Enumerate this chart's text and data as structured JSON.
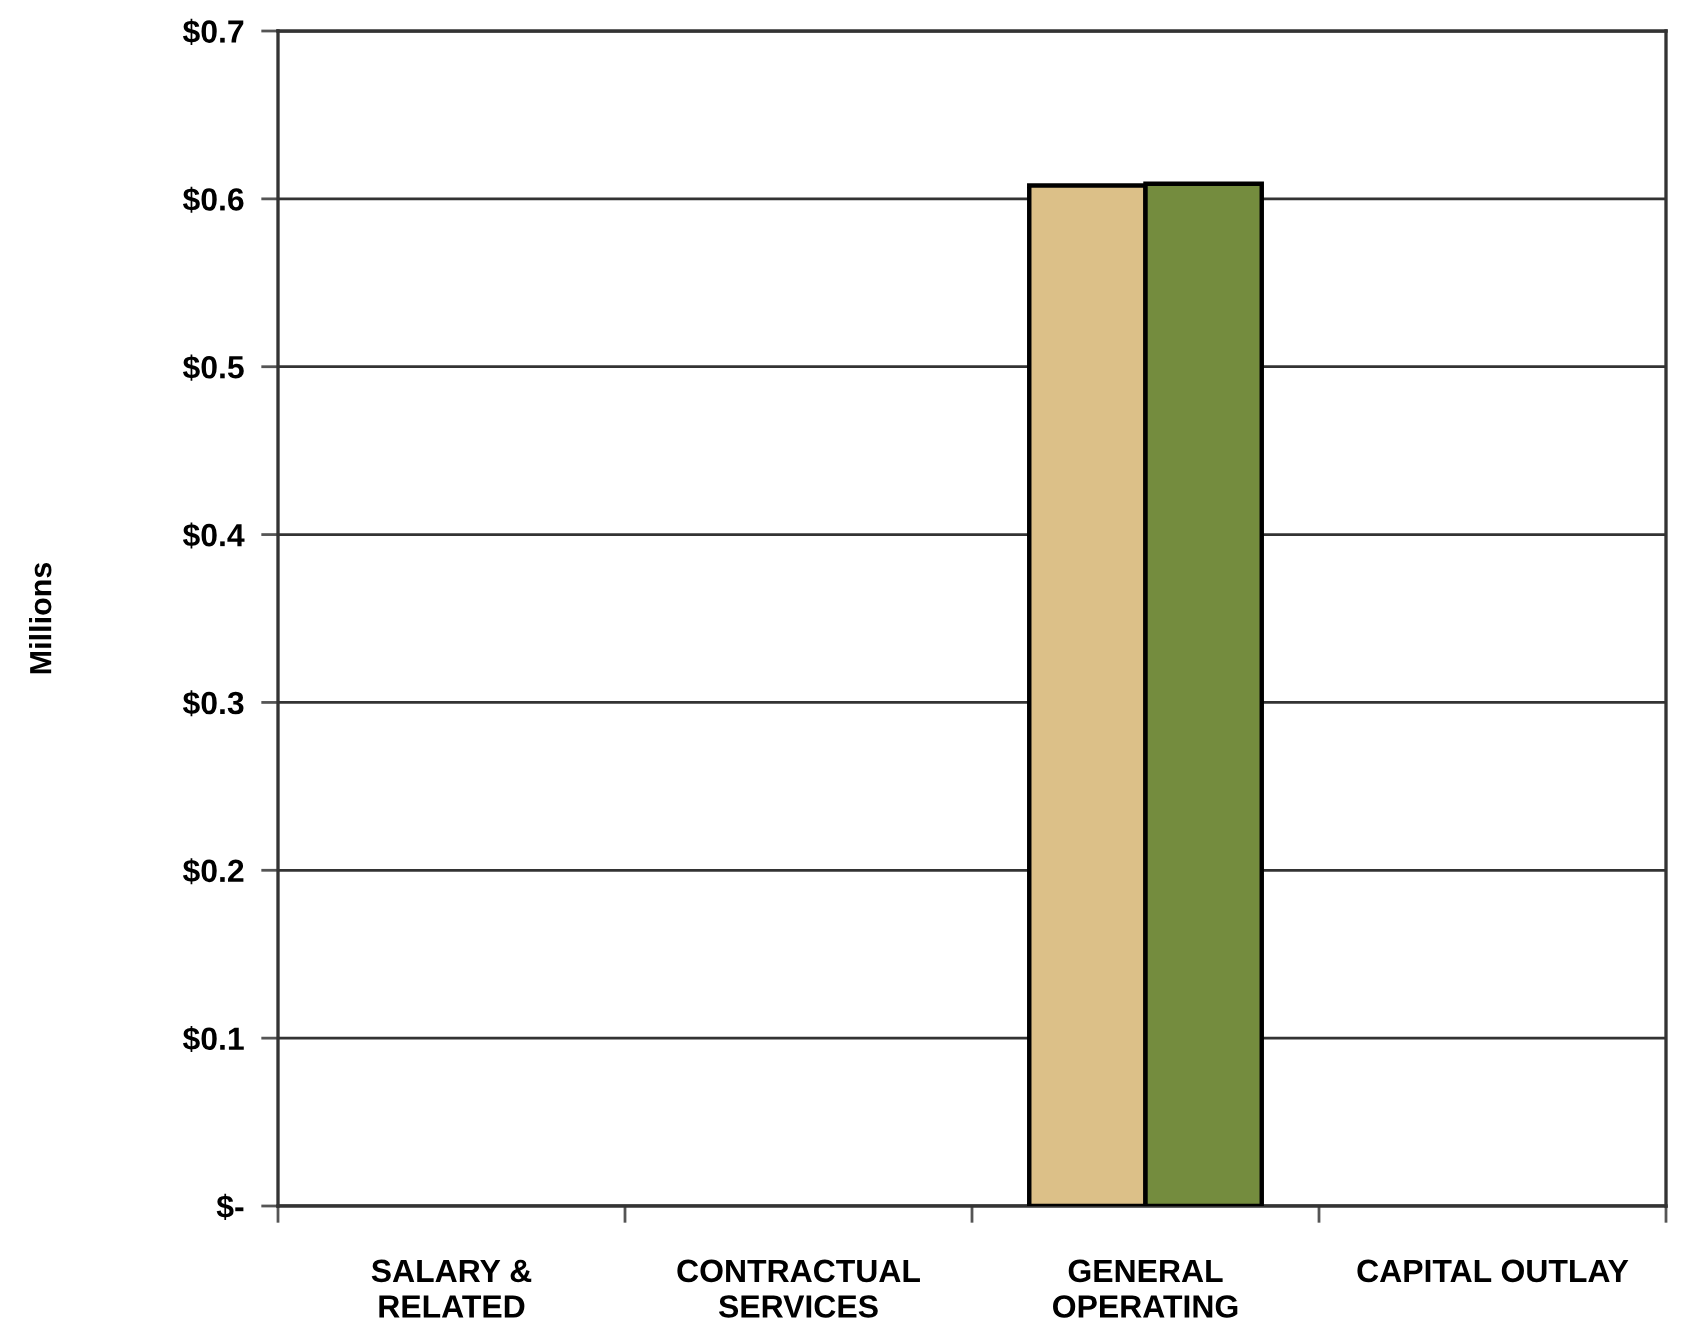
{
  "chart_data": {
    "type": "bar",
    "ylabel": "Millions",
    "categories": [
      "SALARY &\nRELATED",
      "CONTRACTUAL\nSERVICES",
      "GENERAL\nOPERATING",
      "CAPITAL OUTLAY"
    ],
    "series": [
      {
        "color": "#dcc088",
        "values": [
          null,
          null,
          0.608,
          null
        ]
      },
      {
        "color": "#748c3e",
        "values": [
          null,
          null,
          0.609,
          null
        ]
      }
    ],
    "ylim": [
      0,
      0.7
    ],
    "yticks": [
      {
        "value": 0,
        "label": "$-"
      },
      {
        "value": 0.1,
        "label": "$0.1"
      },
      {
        "value": 0.2,
        "label": "$0.2"
      },
      {
        "value": 0.3,
        "label": "$0.3"
      },
      {
        "value": 0.4,
        "label": "$0.4"
      },
      {
        "value": 0.5,
        "label": "$0.5"
      },
      {
        "value": 0.6,
        "label": "$0.6"
      },
      {
        "value": 0.7,
        "label": "$0.7"
      }
    ],
    "grid": "y"
  }
}
